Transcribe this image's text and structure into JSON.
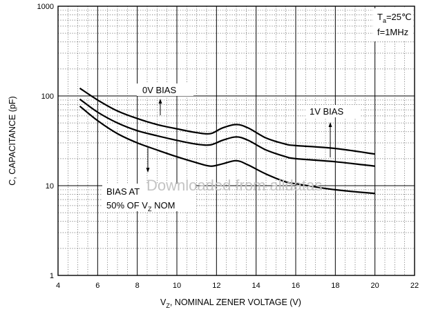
{
  "chart_data": {
    "type": "line",
    "xlabel": "V",
    "xlabel_sub": "Z",
    "xlabel_rest": ", NOMINAL ZENER VOLTAGE (V)",
    "ylabel": "C, CAPACITANCE (pF)",
    "xlim": [
      4,
      22
    ],
    "ylim": [
      1,
      1000
    ],
    "yscale": "log",
    "grid": true,
    "x_ticks": [
      "4",
      "6",
      "8",
      "10",
      "12",
      "14",
      "16",
      "18",
      "20",
      "22"
    ],
    "y_ticks": [
      "1",
      "10",
      "100",
      "1000"
    ],
    "conditions": {
      "ta_pre": "T",
      "ta_sub": "a",
      "ta_post": "=25℃",
      "freq": "f=1MHz"
    },
    "annotations": {
      "zero_bias": "0V BIAS",
      "one_bias": "1V BIAS",
      "half_bias_line1": "BIAS AT",
      "half_bias_pre": "50% OF V",
      "half_bias_sub": "Z",
      "half_bias_post": " NOM"
    },
    "watermark": "Downloaded from alldatas",
    "series": [
      {
        "x": [
          5.1,
          6,
          7,
          8,
          9,
          10,
          11,
          11.7,
          12.3,
          13,
          13.6,
          14.5,
          15.5,
          16,
          18,
          20
        ],
        "y": [
          122,
          90,
          68,
          56,
          48,
          43,
          39,
          38,
          44,
          48,
          44,
          34,
          29,
          28,
          26,
          22.5
        ]
      },
      {
        "x": [
          5.1,
          6,
          7,
          8,
          9,
          10,
          11,
          11.7,
          12.3,
          13,
          13.6,
          14.5,
          15.5,
          16,
          18,
          20
        ],
        "y": [
          92,
          66,
          50,
          41,
          36,
          32,
          29,
          28.5,
          32,
          35,
          32,
          25,
          21,
          20,
          18.5,
          16.5
        ]
      },
      {
        "x": [
          5.1,
          6,
          7,
          8,
          9,
          10,
          11,
          11.7,
          12.3,
          13,
          13.6,
          14.5,
          15.5,
          16,
          18,
          20
        ],
        "y": [
          77,
          53,
          38,
          30,
          25,
          21,
          18,
          16.5,
          17.5,
          19,
          17,
          13.5,
          11,
          10.5,
          9,
          8.2
        ]
      }
    ]
  }
}
